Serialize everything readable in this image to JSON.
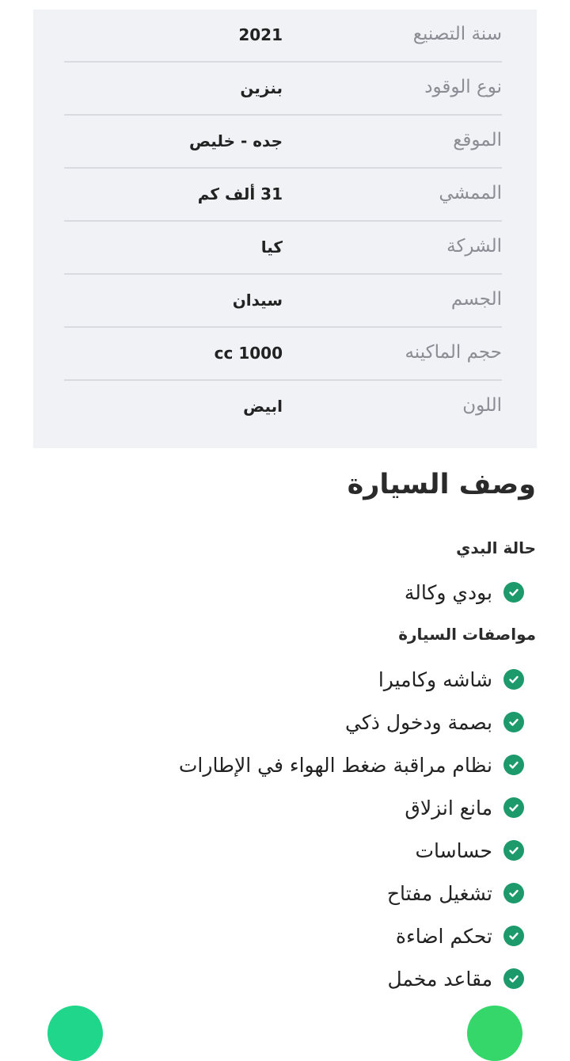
{
  "specs": [
    {
      "label": "سنة التصنيع",
      "value": "2021"
    },
    {
      "label": "نوع الوقود",
      "value": "بنزين"
    },
    {
      "label": "الموقع",
      "value": "جده - خليص"
    },
    {
      "label": "الممشي",
      "value": "31 ألف كم"
    },
    {
      "label": "الشركة",
      "value": "كيا"
    },
    {
      "label": "الجسم",
      "value": "سيدان"
    },
    {
      "label": "حجم الماكينه",
      "value": "cc 1000"
    },
    {
      "label": "اللون",
      "value": "ابيض"
    }
  ],
  "description": {
    "title": "وصف السيارة",
    "body_heading": "حالة البدي",
    "body_items": [
      "بودي وكالة"
    ],
    "features_heading": "مواصفات السيارة",
    "features": [
      "شاشه وكاميرا",
      "بصمة ودخول ذكي",
      "نظام مراقبة ضغط الهواء في الإطارات",
      "مانع انزلاق",
      "حساسات",
      "تشغيل مفتاح",
      "تحكم اضاءة",
      "مقاعد مخمل"
    ]
  },
  "colors": {
    "check": "#1d9a6c",
    "fab_left": "#1fd68a",
    "fab_right": "#35d66a"
  },
  "icons": {
    "check": "check-circle-icon"
  }
}
